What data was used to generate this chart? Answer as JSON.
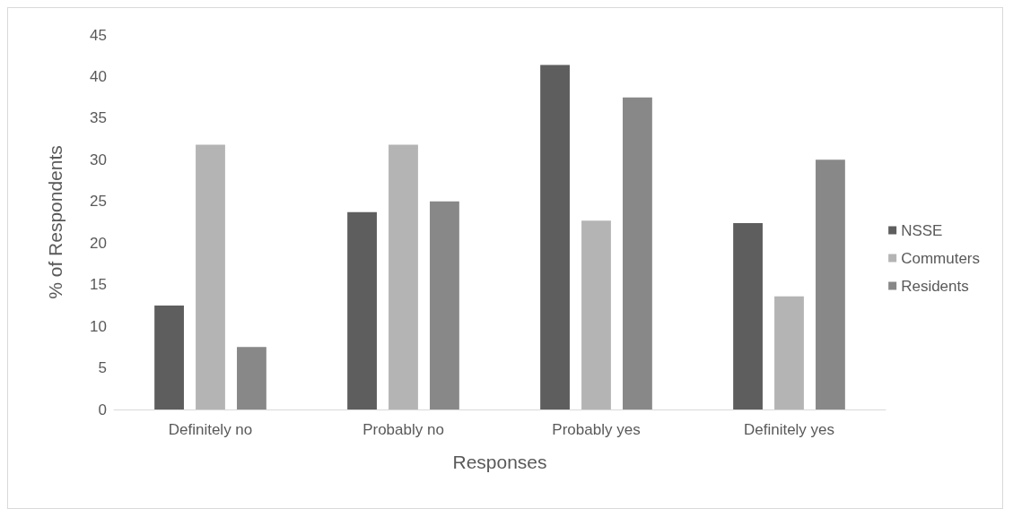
{
  "chart_data": {
    "type": "bar",
    "xlabel": "Responses",
    "ylabel": "% of Respondents",
    "categories": [
      "Definitely no",
      "Probably no",
      "Probably yes",
      "Definitely yes"
    ],
    "series": [
      {
        "name": "NSSE",
        "color": "#5e5e5e",
        "values": [
          12.5,
          23.7,
          41.4,
          22.4
        ]
      },
      {
        "name": "Commuters",
        "color": "#b4b4b4",
        "values": [
          31.8,
          31.8,
          22.7,
          13.6
        ]
      },
      {
        "name": "Residents",
        "color": "#888888",
        "values": [
          7.5,
          25,
          37.5,
          30
        ]
      }
    ],
    "ylim": [
      0,
      45
    ],
    "yticks": [
      0,
      5,
      10,
      15,
      20,
      25,
      30,
      35,
      40,
      45
    ],
    "grid": false,
    "legend": "right"
  }
}
